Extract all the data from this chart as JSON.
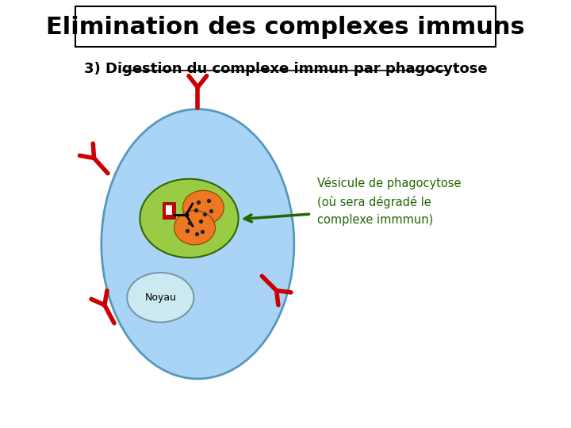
{
  "title": "Elimination des complexes immuns",
  "subtitle": "3) Digestion du complexe immun par phagocytose",
  "background_color": "#ffffff",
  "cell_color": "#aad4f5",
  "cell_border_color": "#5599bb",
  "vesicle_color": "#99cc44",
  "vesicle_border_color": "#336600",
  "nucleus_color": "#cce8f0",
  "nucleus_border_color": "#7799aa",
  "antigen_color": "#ee7722",
  "antibody_color": "#cc0000",
  "arrow_color": "#226600",
  "annotation_color": "#226600",
  "annotation_text": "Vésicule de phagocytose\n(où sera dégradé le\ncomplexe immmun)",
  "noyau_label": "Noyau"
}
